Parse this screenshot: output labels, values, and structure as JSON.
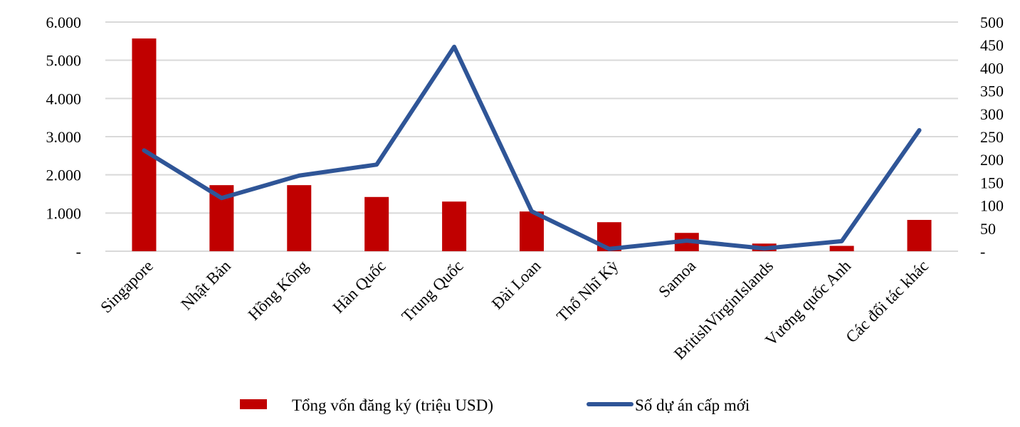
{
  "chart_data": {
    "type": "bar+line",
    "title": "",
    "categories": [
      "Singapore",
      "Nhật Bản",
      "Hồng Kông",
      "Hàn Quốc",
      "Trung Quốc",
      "Đài Loan",
      "Thổ Nhĩ Kỳ",
      "Samoa",
      "BritishVirginIslands",
      "Vương quốc Anh",
      "Các đối tác khác"
    ],
    "series": [
      {
        "name": "Tổng vốn đăng ký (triệu USD)",
        "type": "bar",
        "axis": "left",
        "color": "#C00000",
        "values": [
          5570,
          1730,
          1730,
          1420,
          1300,
          1040,
          760,
          480,
          200,
          140,
          820
        ]
      },
      {
        "name": "Số dự án cấp mới",
        "type": "line",
        "axis": "right",
        "color": "#2F5597",
        "values": [
          220,
          116,
          165,
          189,
          446,
          87,
          5,
          23,
          6,
          22,
          264
        ]
      }
    ],
    "left_axis": {
      "label": "",
      "ylim": [
        0,
        6000
      ],
      "ticks": [
        "-",
        "1.000",
        "2.000",
        "3.000",
        "4.000",
        "5.000",
        "6.000"
      ],
      "tick_values": [
        0,
        1000,
        2000,
        3000,
        4000,
        5000,
        6000
      ]
    },
    "right_axis": {
      "label": "",
      "ylim": [
        0,
        500
      ],
      "ticks": [
        "-",
        "50",
        "100",
        "150",
        "200",
        "250",
        "300",
        "350",
        "400",
        "450",
        "500"
      ],
      "tick_values": [
        0,
        50,
        100,
        150,
        200,
        250,
        300,
        350,
        400,
        450,
        500
      ]
    },
    "xlabel": "",
    "grid": true,
    "legend_position": "bottom"
  },
  "legend": {
    "bar_label": "Tổng vốn đăng ký (triệu USD)",
    "line_label": "Số dự án cấp mới"
  }
}
